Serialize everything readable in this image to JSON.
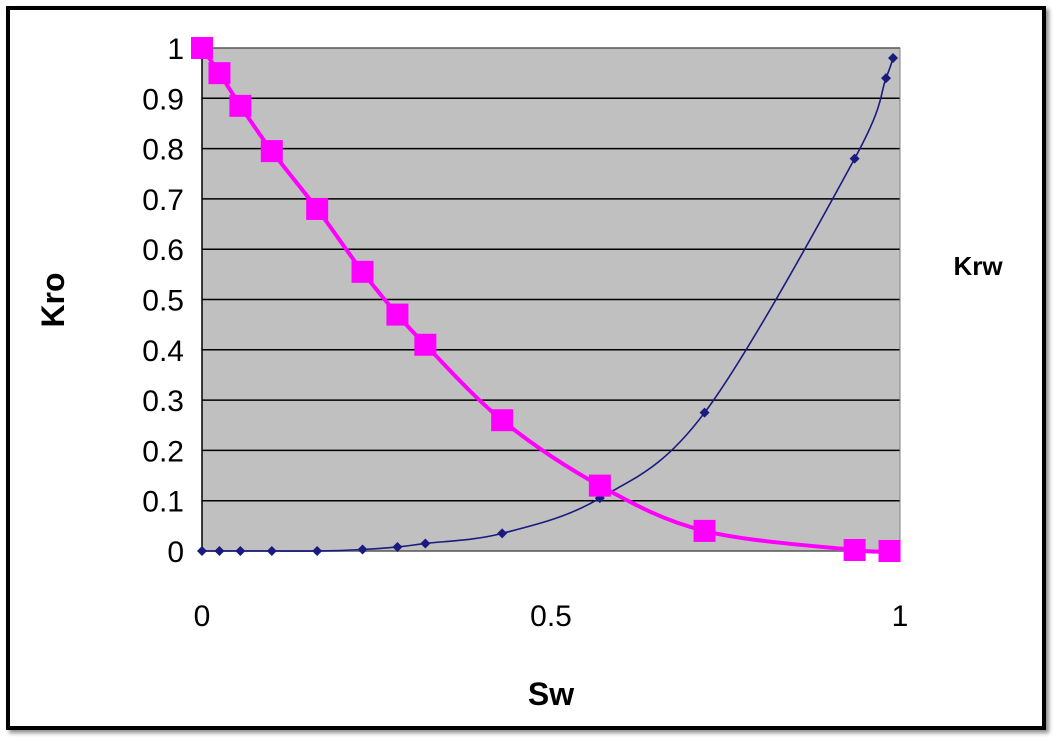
{
  "chart_data": {
    "type": "scatter",
    "title": "",
    "xlabel": "Sw",
    "ylabel": "Kro",
    "y2label": "Krw",
    "xlim": [
      0,
      1
    ],
    "ylim": [
      0,
      1
    ],
    "x_ticks": [
      0,
      0.5,
      1
    ],
    "x_tick_labels": [
      "0",
      "0.5",
      "1"
    ],
    "y_ticks": [
      0,
      0.1,
      0.2,
      0.3,
      0.4,
      0.5,
      0.6,
      0.7,
      0.8,
      0.9,
      1
    ],
    "y_tick_labels": [
      "0",
      "0.1",
      "0.2",
      "0.3",
      "0.4",
      "0.5",
      "0.6",
      "0.7",
      "0.8",
      "0.9",
      "1"
    ],
    "grid": true,
    "plot_background": "#c0c0c0",
    "series": [
      {
        "color": "#ff00ff",
        "marker": "square",
        "x": [
          0,
          0.025,
          0.055,
          0.1,
          0.165,
          0.23,
          0.28,
          0.32,
          0.43,
          0.57,
          0.72,
          0.935,
          0.985
        ],
        "y": [
          1.0,
          0.95,
          0.885,
          0.795,
          0.68,
          0.555,
          0.47,
          0.41,
          0.26,
          0.13,
          0.04,
          0.002,
          0.0
        ]
      },
      {
        "color": "#1a1a80",
        "marker": "diamond",
        "x": [
          0,
          0.025,
          0.055,
          0.1,
          0.165,
          0.23,
          0.28,
          0.32,
          0.43,
          0.57,
          0.72,
          0.935,
          0.98,
          0.99
        ],
        "y": [
          0,
          0,
          0,
          0,
          0,
          0.003,
          0.008,
          0.015,
          0.035,
          0.105,
          0.275,
          0.78,
          0.94,
          0.98
        ]
      }
    ]
  }
}
